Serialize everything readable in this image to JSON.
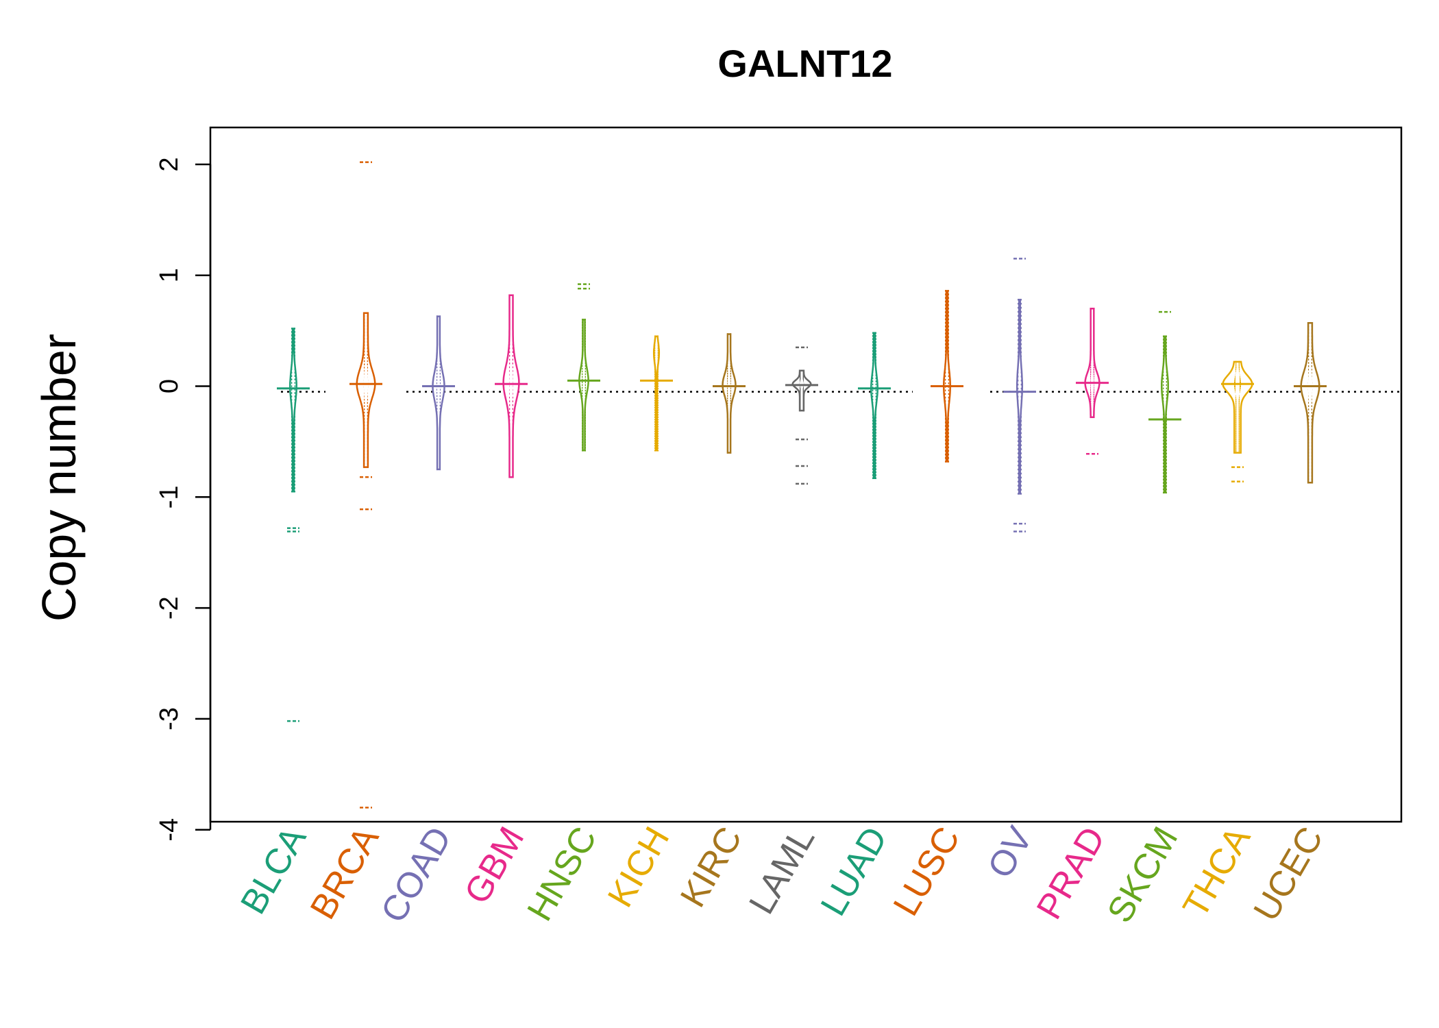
{
  "chart_data": {
    "type": "beanplot",
    "title": "GALNT12",
    "xlabel": "",
    "ylabel": "Copy number",
    "ylim": [
      -4,
      2.2
    ],
    "yticks": [
      2,
      1,
      0,
      -1,
      -2,
      -3,
      -4
    ],
    "reference_line": -0.05,
    "categories": [
      "BLCA",
      "BRCA",
      "COAD",
      "GBM",
      "HNSC",
      "KICH",
      "KIRC",
      "LAML",
      "LUAD",
      "LUSC",
      "OV",
      "PRAD",
      "SKCM",
      "THCA",
      "UCEC"
    ],
    "colors": [
      "#1b9e77",
      "#d95f02",
      "#7570b3",
      "#e7298a",
      "#66a61e",
      "#e6ab02",
      "#a6761d",
      "#666666",
      "#1b9e77",
      "#d95f02",
      "#7570b3",
      "#e7298a",
      "#66a61e",
      "#e6ab02",
      "#a6761d"
    ],
    "series": [
      {
        "name": "BLCA",
        "min": -0.95,
        "max": 0.52,
        "median": -0.02,
        "mode": 0.0,
        "width": 0.1,
        "outliers": [
          -1.28,
          -1.31,
          -3.02
        ]
      },
      {
        "name": "BRCA",
        "min": -0.73,
        "max": 0.66,
        "median": 0.02,
        "mode": 0.02,
        "width": 0.28,
        "outliers": [
          -0.82,
          -1.11,
          2.02,
          -3.8
        ]
      },
      {
        "name": "COAD",
        "min": -0.75,
        "max": 0.63,
        "median": 0.0,
        "mode": 0.0,
        "width": 0.18,
        "outliers": []
      },
      {
        "name": "GBM",
        "min": -0.82,
        "max": 0.82,
        "median": 0.02,
        "mode": 0.03,
        "width": 0.24,
        "outliers": []
      },
      {
        "name": "HNSC",
        "min": -0.58,
        "max": 0.6,
        "median": 0.05,
        "mode": 0.05,
        "width": 0.14,
        "outliers": [
          0.88,
          0.92
        ]
      },
      {
        "name": "KICH",
        "min": -0.58,
        "max": 0.45,
        "median": 0.05,
        "mode": 0.3,
        "width": 0.08,
        "outliers": []
      },
      {
        "name": "KIRC",
        "min": -0.6,
        "max": 0.47,
        "median": 0.0,
        "mode": 0.01,
        "width": 0.2,
        "outliers": []
      },
      {
        "name": "LAML",
        "min": -0.22,
        "max": 0.14,
        "median": 0.01,
        "mode": 0.02,
        "width": 0.28,
        "outliers": [
          0.35,
          -0.48,
          -0.72,
          -0.88
        ]
      },
      {
        "name": "LUAD",
        "min": -0.83,
        "max": 0.48,
        "median": -0.02,
        "mode": -0.02,
        "width": 0.1,
        "outliers": []
      },
      {
        "name": "LUSC",
        "min": -0.68,
        "max": 0.86,
        "median": 0.0,
        "mode": 0.0,
        "width": 0.1,
        "outliers": []
      },
      {
        "name": "OV",
        "min": -0.97,
        "max": 0.78,
        "median": -0.05,
        "mode": 0.0,
        "width": 0.08,
        "outliers": [
          1.15,
          -1.24,
          -1.31
        ]
      },
      {
        "name": "PRAD",
        "min": -0.28,
        "max": 0.7,
        "median": 0.03,
        "mode": 0.03,
        "width": 0.22,
        "outliers": [
          -0.61
        ]
      },
      {
        "name": "SKCM",
        "min": -0.96,
        "max": 0.45,
        "median": -0.3,
        "mode": 0.0,
        "width": 0.1,
        "outliers": [
          0.67
        ]
      },
      {
        "name": "THCA",
        "min": -0.6,
        "max": 0.22,
        "median": 0.02,
        "mode": 0.02,
        "width": 0.45,
        "outliers": [
          -0.73,
          -0.86
        ]
      },
      {
        "name": "UCEC",
        "min": -0.87,
        "max": 0.57,
        "median": 0.0,
        "mode": 0.0,
        "width": 0.28,
        "outliers": []
      }
    ]
  }
}
